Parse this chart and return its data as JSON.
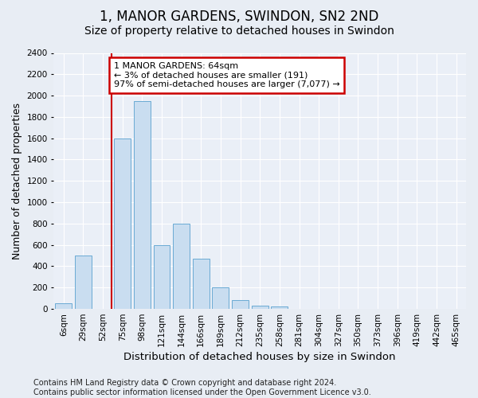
{
  "title": "1, MANOR GARDENS, SWINDON, SN2 2ND",
  "subtitle": "Size of property relative to detached houses in Swindon",
  "xlabel": "Distribution of detached houses by size in Swindon",
  "ylabel": "Number of detached properties",
  "categories": [
    "6sqm",
    "29sqm",
    "52sqm",
    "75sqm",
    "98sqm",
    "121sqm",
    "144sqm",
    "166sqm",
    "189sqm",
    "212sqm",
    "235sqm",
    "258sqm",
    "281sqm",
    "304sqm",
    "327sqm",
    "350sqm",
    "373sqm",
    "396sqm",
    "419sqm",
    "442sqm",
    "465sqm"
  ],
  "values": [
    50,
    500,
    0,
    1600,
    1950,
    600,
    800,
    470,
    200,
    85,
    30,
    20,
    0,
    0,
    0,
    0,
    0,
    0,
    0,
    0,
    0
  ],
  "bar_color": "#c9ddf0",
  "bar_edge_color": "#6aaad4",
  "vline_x_idx": 2,
  "vline_color": "#cc0000",
  "ylim": [
    0,
    2400
  ],
  "yticks": [
    0,
    200,
    400,
    600,
    800,
    1000,
    1200,
    1400,
    1600,
    1800,
    2000,
    2200,
    2400
  ],
  "annotation_text": "1 MANOR GARDENS: 64sqm\n← 3% of detached houses are smaller (191)\n97% of semi-detached houses are larger (7,077) →",
  "annotation_box_color": "#ffffff",
  "annotation_box_edge": "#cc0000",
  "bg_color": "#e8edf4",
  "plot_bg_color": "#eaeff7",
  "footer": "Contains HM Land Registry data © Crown copyright and database right 2024.\nContains public sector information licensed under the Open Government Licence v3.0.",
  "title_fontsize": 12,
  "subtitle_fontsize": 10,
  "xlabel_fontsize": 9.5,
  "ylabel_fontsize": 9,
  "footer_fontsize": 7,
  "tick_fontsize": 7.5,
  "ann_fontsize": 8
}
